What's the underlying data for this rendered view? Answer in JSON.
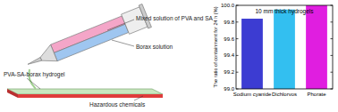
{
  "chart_data": {
    "type": "bar",
    "title": "10 mm thick hydrogels",
    "y_label": "The ratio of containment for 24 h (%)",
    "categories": [
      "Sodium cyanide",
      "Dichlorvos",
      "Phorate"
    ],
    "values": [
      99.84,
      99.95,
      100.0
    ],
    "colors": [
      "#3c3cd2",
      "#33bff0",
      "#e01ee0"
    ],
    "ylim": [
      99.0,
      100.0
    ],
    "yticks": [
      {
        "value": 99.0,
        "label": "99.0"
      },
      99.2,
      99.4,
      99.6,
      99.8,
      {
        "value": 100.0,
        "label": "100.0"
      }
    ],
    "grid": false
  },
  "diagram": {
    "labels": [
      "Mixed solution of PVA and SA",
      "Borax solution",
      "PVA-SA-borax hydrogel",
      "Hazardous chemicals"
    ]
  }
}
